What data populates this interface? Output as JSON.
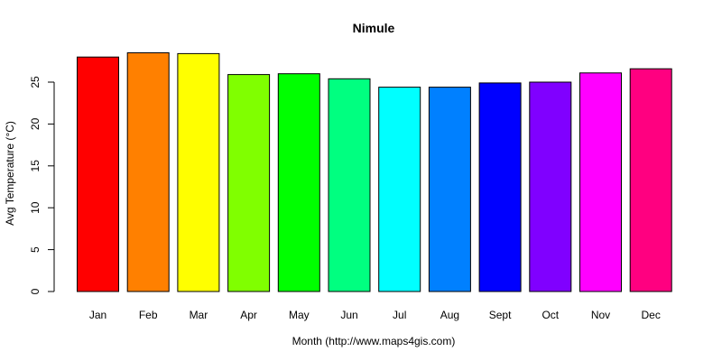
{
  "chart_data": {
    "type": "bar",
    "title": "Nimule",
    "xlabel": "Month (http://www.maps4gis.com)",
    "ylabel": "Avg Temperature (°C)",
    "categories": [
      "Jan",
      "Feb",
      "Mar",
      "Apr",
      "May",
      "Jun",
      "Jul",
      "Aug",
      "Sept",
      "Oct",
      "Nov",
      "Dec"
    ],
    "values": [
      28.0,
      28.5,
      28.4,
      25.9,
      26.0,
      25.4,
      24.4,
      24.4,
      24.9,
      25.0,
      26.1,
      26.6
    ],
    "colors": [
      "#FF0000",
      "#FF8000",
      "#FFFF00",
      "#80FF00",
      "#00FF00",
      "#00FF80",
      "#00FFFF",
      "#0080FF",
      "#0000FF",
      "#8000FF",
      "#FF00FF",
      "#FF0080"
    ],
    "yticks": [
      0,
      5,
      10,
      15,
      20,
      25
    ],
    "ylim": [
      0,
      28.5
    ],
    "grid": false,
    "legend": "none"
  }
}
